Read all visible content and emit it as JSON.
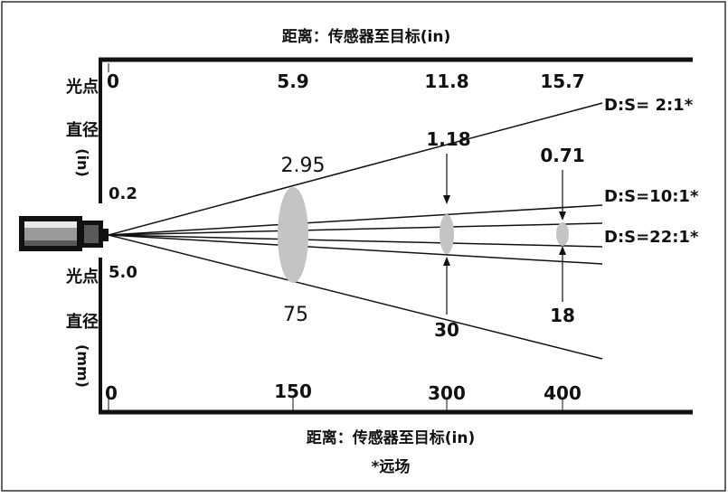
{
  "labels": {
    "top_axis_title": "距离：传感器至目标(in)",
    "bottom_axis_title": "距离：传感器至目标(in)",
    "footnote": "*远场",
    "upper_axis_title_line1": "光点",
    "upper_axis_title_line2": "直径",
    "upper_axis_title_unit": "(in)",
    "lower_axis_title_line1": "光点",
    "lower_axis_title_line2": "直径",
    "lower_axis_title_unit": "(mm)",
    "upper_origin_value": "0.2",
    "lower_origin_value": "5.0",
    "ds_2": "D:S= 2:1*",
    "ds_10": "D:S=10:1*",
    "ds_22": "D:S=22:1*"
  },
  "top_ticks": [
    "0",
    "5.9",
    "11.8",
    "15.7"
  ],
  "bottom_ticks": [
    "0",
    "150",
    "300",
    "400"
  ],
  "spots": {
    "s1_in": "2.95",
    "s1_mm": "75",
    "s2_in": "1.18",
    "s2_mm": "30",
    "s3_in": "0.71",
    "s3_mm": "18"
  },
  "colors": {
    "line": "#111111",
    "spot": "#c4c4c4",
    "sensor_body": "#111111",
    "sensor_light": "#e8e8e8",
    "sensor_mid": "#9a9a9a",
    "sensor_dark": "#5a5a5a",
    "border": "#333333"
  }
}
